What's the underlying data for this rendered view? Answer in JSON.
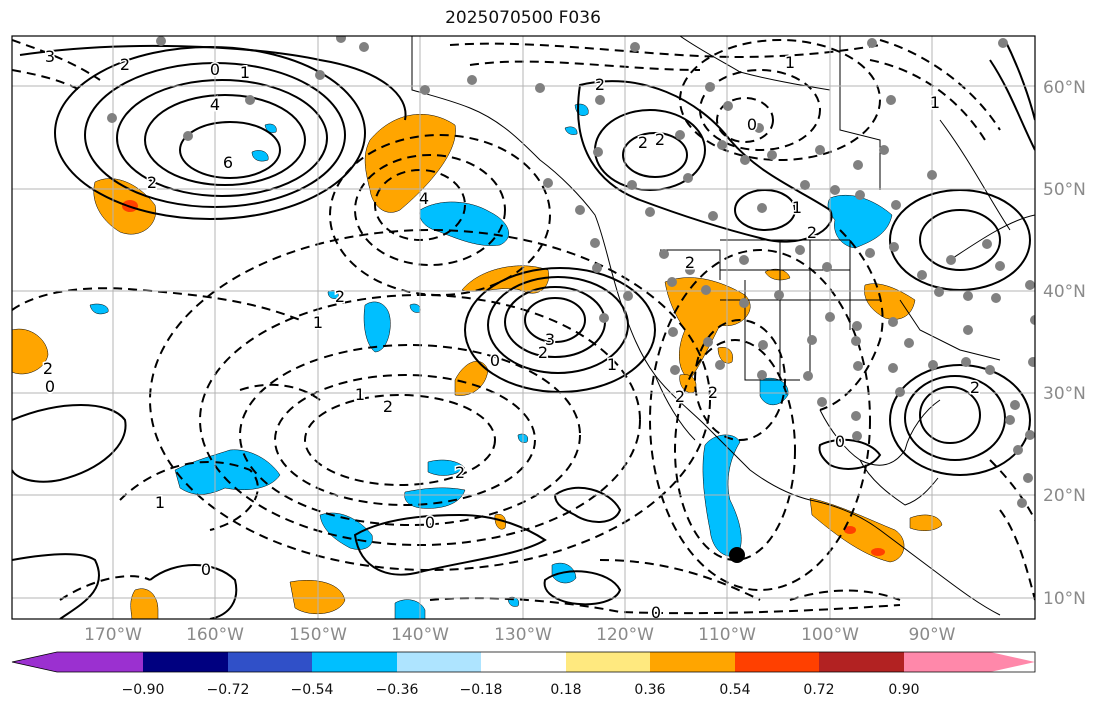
{
  "title": "2025070500 F036",
  "lon_labels": [
    "170°W",
    "160°W",
    "150°W",
    "140°W",
    "130°W",
    "120°W",
    "110°W",
    "100°W",
    "90°W"
  ],
  "lat_labels": [
    "60°N",
    "50°N",
    "40°N",
    "30°N",
    "20°N",
    "10°N"
  ],
  "colorbar": {
    "tick_labels": [
      "−0.90",
      "−0.72",
      "−0.54",
      "−0.36",
      "−0.18",
      "0.18",
      "0.36",
      "0.54",
      "0.72",
      "0.90"
    ],
    "colors": [
      "#9b30d0",
      "#000080",
      "#3050c8",
      "#00bfff",
      "#aee4ff",
      "#ffffff",
      "#ffe97f",
      "#ffa500",
      "#ff4000",
      "#b22222",
      "#ff88aa"
    ]
  },
  "colors": {
    "positive_shade": "#ffa500",
    "strong_positive_shade": "#ff4000",
    "negative_shade": "#00bfff",
    "station_marker": "#808080",
    "grid": "#b4b4b4",
    "contour": "#000000"
  },
  "contour_labels": [
    "3",
    "2",
    "0",
    "1",
    "4",
    "6",
    "2",
    "4",
    "2",
    "1",
    "0",
    "2",
    "3",
    "2",
    "1",
    "0",
    "2",
    "1",
    "2",
    "0",
    "1",
    "2",
    "2",
    "2",
    "1",
    "0",
    "1",
    "2",
    "2",
    "0",
    "0",
    "1",
    "2",
    "2",
    "2",
    "0"
  ]
}
